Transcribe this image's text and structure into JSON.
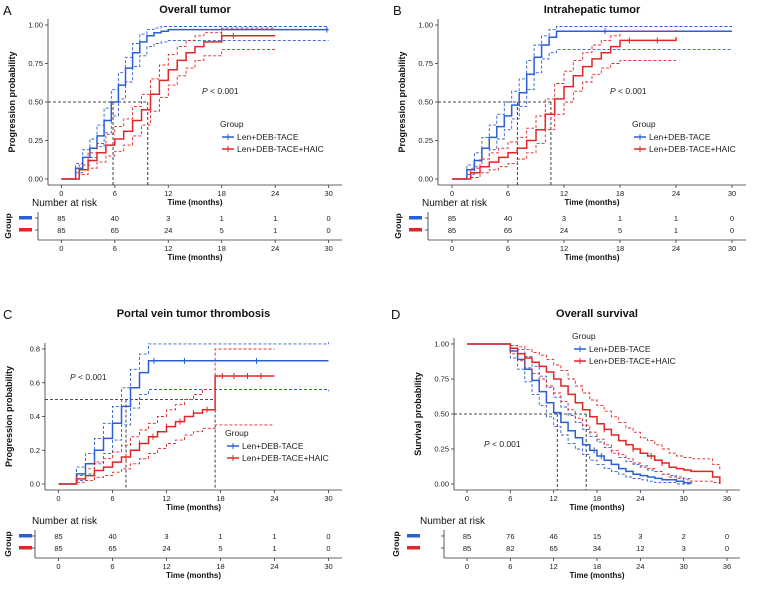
{
  "figure": {
    "colors": {
      "blue": "#2b5fd6",
      "red": "#e22626",
      "axis": "#333333"
    }
  },
  "chart_data": [
    {
      "panel_label": "A",
      "title": "Overall tumor",
      "type": "line",
      "subtype": "kaplan-meier",
      "xlabel": "Time (months)",
      "ylabel": "Progression probability",
      "xlim": [
        0,
        30
      ],
      "ylim": [
        0,
        1.0
      ],
      "xticks": [
        "0",
        "6",
        "12",
        "18",
        "24",
        "30"
      ],
      "yticks": [
        "0.00",
        "0.25",
        "0.50",
        "0.75",
        "1.00"
      ],
      "p_value_italic": "P",
      "p_value_text": " < 0.001",
      "p_position": "middle-right",
      "legend_title": "Group",
      "legend_position": "lower-right",
      "medians": [
        5.8,
        9.7
      ],
      "series": [
        {
          "name": "Len+DEB-TACE",
          "color": "blue",
          "x": [
            0,
            1.2,
            1.6,
            2.4,
            3.2,
            4,
            4.8,
            5.6,
            6.4,
            7.2,
            8,
            8.8,
            9.6,
            10.4,
            11.2,
            12,
            30
          ],
          "y": [
            0,
            0,
            0.07,
            0.14,
            0.2,
            0.28,
            0.38,
            0.5,
            0.61,
            0.72,
            0.82,
            0.89,
            0.93,
            0.95,
            0.96,
            0.97,
            0.97
          ],
          "upper": [
            0,
            0,
            0.1,
            0.19,
            0.26,
            0.35,
            0.46,
            0.58,
            0.69,
            0.79,
            0.88,
            0.94,
            0.97,
            0.98,
            0.99,
            0.99,
            0.99
          ],
          "lower": [
            0,
            0,
            0.04,
            0.09,
            0.14,
            0.21,
            0.3,
            0.41,
            0.52,
            0.63,
            0.73,
            0.8,
            0.86,
            0.88,
            0.89,
            0.9,
            0.9
          ],
          "censor_x": [
            29.8
          ]
        },
        {
          "name": "Len+DEB-TACE+HAIC",
          "color": "red",
          "x": [
            0,
            1.2,
            2,
            3,
            4,
            5,
            6,
            7,
            8,
            9,
            10,
            11,
            12,
            13,
            14,
            15,
            16,
            18,
            24
          ],
          "y": [
            0,
            0,
            0.06,
            0.12,
            0.17,
            0.22,
            0.26,
            0.31,
            0.38,
            0.45,
            0.55,
            0.64,
            0.71,
            0.77,
            0.82,
            0.86,
            0.89,
            0.93,
            0.93
          ],
          "upper": [
            0,
            0,
            0.09,
            0.17,
            0.23,
            0.29,
            0.34,
            0.39,
            0.47,
            0.55,
            0.65,
            0.74,
            0.81,
            0.86,
            0.9,
            0.93,
            0.95,
            0.98,
            0.98
          ],
          "lower": [
            0,
            0,
            0.03,
            0.07,
            0.11,
            0.15,
            0.18,
            0.22,
            0.28,
            0.35,
            0.44,
            0.53,
            0.61,
            0.67,
            0.72,
            0.77,
            0.8,
            0.84,
            0.84
          ],
          "censor_x": [
            18,
            19.3
          ]
        }
      ],
      "number_at_risk": {
        "header": "Number at risk",
        "group_label": "Group",
        "times": [
          "0",
          "6",
          "12",
          "18",
          "24",
          "30"
        ],
        "rows": [
          {
            "color": "blue",
            "counts": [
              "85",
              "40",
              "3",
              "1",
              "1",
              "0"
            ]
          },
          {
            "color": "red",
            "counts": [
              "85",
              "65",
              "24",
              "5",
              "1",
              "0"
            ]
          }
        ],
        "xlabel": "Time (months)"
      }
    },
    {
      "panel_label": "B",
      "title": "Intrahepatic tumor",
      "type": "line",
      "subtype": "kaplan-meier",
      "xlabel": "Time (months)",
      "ylabel": "Progression probability",
      "xlim": [
        0,
        30
      ],
      "ylim": [
        0,
        1.0
      ],
      "xticks": [
        "0",
        "6",
        "12",
        "18",
        "24",
        "30"
      ],
      "yticks": [
        "0.00",
        "0.25",
        "0.50",
        "0.75",
        "1.00"
      ],
      "p_value_italic": "P",
      "p_value_text": " < 0.001",
      "p_position": "middle-right",
      "legend_title": "Group",
      "legend_position": "lower-right",
      "medians": [
        7.0,
        10.6
      ],
      "series": [
        {
          "name": "Len+DEB-TACE",
          "color": "blue",
          "x": [
            0,
            1.2,
            1.6,
            2.4,
            3.2,
            4,
            4.8,
            5.6,
            6.4,
            7.2,
            8,
            8.8,
            9.6,
            10.4,
            11.2,
            30
          ],
          "y": [
            0,
            0,
            0.06,
            0.12,
            0.2,
            0.27,
            0.34,
            0.41,
            0.48,
            0.56,
            0.68,
            0.79,
            0.87,
            0.92,
            0.96,
            0.96
          ],
          "upper": [
            0,
            0,
            0.09,
            0.17,
            0.27,
            0.35,
            0.42,
            0.5,
            0.57,
            0.65,
            0.77,
            0.87,
            0.93,
            0.97,
            0.99,
            0.99
          ],
          "lower": [
            0,
            0,
            0.03,
            0.08,
            0.13,
            0.19,
            0.26,
            0.32,
            0.39,
            0.47,
            0.58,
            0.69,
            0.78,
            0.82,
            0.84,
            0.84
          ],
          "censor_x": [
            16.4
          ]
        },
        {
          "name": "Len+DEB-TACE+HAIC",
          "color": "red",
          "x": [
            0,
            1.2,
            2,
            3,
            4,
            5,
            6,
            7,
            8,
            9,
            10,
            11,
            12,
            13,
            14,
            15,
            16,
            17,
            18,
            24
          ],
          "y": [
            0,
            0,
            0.04,
            0.08,
            0.11,
            0.14,
            0.17,
            0.2,
            0.25,
            0.32,
            0.42,
            0.52,
            0.6,
            0.67,
            0.73,
            0.78,
            0.82,
            0.86,
            0.9,
            0.92
          ],
          "upper": [
            0,
            0,
            0.07,
            0.13,
            0.17,
            0.2,
            0.24,
            0.27,
            0.33,
            0.41,
            0.52,
            0.62,
            0.7,
            0.77,
            0.82,
            0.87,
            0.9,
            0.93,
            0.96,
            0.98
          ],
          "lower": [
            0,
            0,
            0.01,
            0.04,
            0.06,
            0.08,
            0.1,
            0.13,
            0.17,
            0.23,
            0.32,
            0.42,
            0.5,
            0.57,
            0.63,
            0.68,
            0.72,
            0.75,
            0.77,
            0.77
          ],
          "censor_x": [
            19,
            22
          ]
        }
      ],
      "number_at_risk": {
        "header": "Number at risk",
        "group_label": "Group",
        "times": [
          "0",
          "6",
          "12",
          "18",
          "24",
          "30"
        ],
        "rows": [
          {
            "color": "blue",
            "counts": [
              "85",
              "40",
              "3",
              "1",
              "1",
              "0"
            ]
          },
          {
            "color": "red",
            "counts": [
              "85",
              "65",
              "24",
              "5",
              "1",
              "0"
            ]
          }
        ],
        "xlabel": "Time (months)"
      }
    },
    {
      "panel_label": "C",
      "title": "Portal vein tumor thrombosis",
      "type": "line",
      "subtype": "kaplan-meier",
      "xlabel": "Time (months)",
      "ylabel": "Progression probability",
      "xlim": [
        0,
        30
      ],
      "ylim": [
        0,
        0.8
      ],
      "xticks": [
        "0",
        "6",
        "12",
        "18",
        "24",
        "30"
      ],
      "yticks": [
        "0.0",
        "0.2",
        "0.4",
        "0.6",
        "0.8"
      ],
      "p_value_italic": "P",
      "p_value_text": " < 0.001",
      "p_position": "top-left",
      "legend_title": "Group",
      "legend_position": "lower-right",
      "medians": [
        7.5,
        17.4
      ],
      "series": [
        {
          "name": "Len+DEB-TACE",
          "color": "blue",
          "x": [
            0,
            1.2,
            2,
            3,
            4,
            5,
            6,
            7,
            8,
            9,
            10,
            30
          ],
          "y": [
            0,
            0,
            0.06,
            0.12,
            0.2,
            0.27,
            0.36,
            0.46,
            0.57,
            0.66,
            0.73,
            0.73
          ],
          "upper": [
            0,
            0,
            0.1,
            0.18,
            0.27,
            0.36,
            0.46,
            0.57,
            0.68,
            0.77,
            0.83,
            0.84
          ],
          "lower": [
            0,
            0,
            0.02,
            0.06,
            0.12,
            0.18,
            0.26,
            0.35,
            0.45,
            0.53,
            0.56,
            0.55
          ],
          "censor_x": [
            10.6,
            14,
            22
          ]
        },
        {
          "name": "Len+DEB-TACE+HAIC",
          "color": "red",
          "x": [
            0,
            1.2,
            2,
            3,
            4,
            5,
            6,
            7,
            8,
            9,
            10,
            11,
            12,
            13,
            14,
            15,
            16,
            17.4,
            24
          ],
          "y": [
            0,
            0,
            0.03,
            0.05,
            0.08,
            0.1,
            0.13,
            0.16,
            0.2,
            0.24,
            0.28,
            0.31,
            0.34,
            0.37,
            0.4,
            0.42,
            0.44,
            0.64,
            0.64
          ],
          "upper": [
            0,
            0,
            0.05,
            0.09,
            0.13,
            0.15,
            0.19,
            0.23,
            0.28,
            0.32,
            0.36,
            0.4,
            0.44,
            0.47,
            0.5,
            0.53,
            0.56,
            0.8,
            0.8
          ],
          "lower": [
            0,
            0,
            0.01,
            0.02,
            0.04,
            0.05,
            0.07,
            0.09,
            0.12,
            0.15,
            0.18,
            0.21,
            0.24,
            0.26,
            0.29,
            0.31,
            0.33,
            0.35,
            0.35
          ],
          "censor_x": [
            7.5,
            9,
            10.5,
            12,
            13.5,
            15,
            16.5,
            18.2,
            19.5,
            21,
            22.5
          ]
        }
      ],
      "number_at_risk": {
        "header": "Number at risk",
        "group_label": "Group",
        "times": [
          "0",
          "6",
          "12",
          "18",
          "24",
          "30"
        ],
        "rows": [
          {
            "color": "blue",
            "counts": [
              "85",
              "40",
              "3",
              "1",
              "1",
              "0"
            ]
          },
          {
            "color": "red",
            "counts": [
              "85",
              "65",
              "24",
              "5",
              "1",
              "0"
            ]
          }
        ],
        "xlabel": "Time (months)"
      }
    },
    {
      "panel_label": "D",
      "title": "Overall survival",
      "type": "line",
      "subtype": "kaplan-meier",
      "xlabel": "Time (months)",
      "ylabel": "Survival probability",
      "xlim": [
        0,
        36
      ],
      "ylim": [
        0,
        1.0
      ],
      "xticks": [
        "0",
        "6",
        "12",
        "18",
        "24",
        "30",
        "36"
      ],
      "yticks": [
        "0.00",
        "0.25",
        "0.50",
        "0.75",
        "1.00"
      ],
      "p_value_italic": "P",
      "p_value_text": " < 0.001",
      "p_position": "lower-left",
      "legend_title": "Group",
      "legend_position": "top-right",
      "medians": [
        12.5,
        16.5
      ],
      "series": [
        {
          "name": "Len+DEB-TACE",
          "color": "blue",
          "x": [
            0,
            5,
            6,
            7,
            8,
            9,
            10,
            11,
            12,
            13,
            14,
            15,
            16,
            17,
            18,
            19,
            20,
            21,
            22,
            23,
            24,
            25,
            26,
            27,
            28,
            29,
            30,
            31
          ],
          "y": [
            1,
            1,
            0.95,
            0.89,
            0.82,
            0.74,
            0.66,
            0.58,
            0.51,
            0.44,
            0.38,
            0.33,
            0.28,
            0.24,
            0.2,
            0.17,
            0.14,
            0.11,
            0.09,
            0.07,
            0.06,
            0.05,
            0.04,
            0.03,
            0.03,
            0.02,
            0.01,
            0
          ],
          "upper": [
            1,
            1,
            0.99,
            0.96,
            0.91,
            0.84,
            0.77,
            0.69,
            0.62,
            0.55,
            0.49,
            0.44,
            0.39,
            0.34,
            0.3,
            0.26,
            0.22,
            0.19,
            0.16,
            0.14,
            0.12,
            0.1,
            0.09,
            0.07,
            0.06,
            0.05,
            0.04,
            0.03
          ],
          "lower": [
            1,
            1,
            0.9,
            0.82,
            0.73,
            0.64,
            0.56,
            0.48,
            0.41,
            0.35,
            0.29,
            0.25,
            0.21,
            0.17,
            0.14,
            0.11,
            0.09,
            0.07,
            0.05,
            0.04,
            0.03,
            0.02,
            0.01,
            0.01,
            0.01,
            0,
            0,
            0
          ],
          "censor_x": [
            17.6,
            18.6
          ]
        },
        {
          "name": "Len+DEB-TACE+HAIC",
          "color": "red",
          "x": [
            0,
            5,
            6,
            7,
            8,
            9,
            10,
            11,
            12,
            13,
            14,
            15,
            16,
            17,
            18,
            19,
            20,
            21,
            22,
            23,
            24,
            25,
            26,
            27,
            28,
            29,
            30,
            31,
            32,
            34,
            35
          ],
          "y": [
            1,
            1,
            0.97,
            0.93,
            0.9,
            0.87,
            0.84,
            0.8,
            0.75,
            0.7,
            0.64,
            0.58,
            0.53,
            0.48,
            0.43,
            0.39,
            0.35,
            0.31,
            0.28,
            0.25,
            0.22,
            0.2,
            0.17,
            0.15,
            0.12,
            0.11,
            0.1,
            0.09,
            0.09,
            0.05,
            0
          ],
          "upper": [
            1,
            1,
            0.99,
            0.98,
            0.96,
            0.94,
            0.92,
            0.89,
            0.85,
            0.81,
            0.75,
            0.7,
            0.65,
            0.6,
            0.56,
            0.52,
            0.48,
            0.44,
            0.4,
            0.37,
            0.33,
            0.31,
            0.28,
            0.25,
            0.22,
            0.2,
            0.19,
            0.18,
            0.18,
            0.14,
            0.1
          ],
          "lower": [
            1,
            1,
            0.93,
            0.88,
            0.83,
            0.79,
            0.75,
            0.7,
            0.65,
            0.59,
            0.53,
            0.47,
            0.42,
            0.37,
            0.32,
            0.28,
            0.24,
            0.21,
            0.18,
            0.15,
            0.13,
            0.11,
            0.09,
            0.07,
            0.05,
            0.04,
            0.03,
            0.02,
            0.02,
            0.01,
            0
          ],
          "censor_x": [
            19,
            23,
            25.5,
            27
          ]
        }
      ],
      "number_at_risk": {
        "header": "Number at risk",
        "group_label": "Group",
        "times": [
          "0",
          "6",
          "12",
          "18",
          "24",
          "30",
          "36"
        ],
        "rows": [
          {
            "color": "blue",
            "counts": [
              "85",
              "76",
              "46",
              "15",
              "3",
              "2",
              "0"
            ]
          },
          {
            "color": "red",
            "counts": [
              "85",
              "82",
              "65",
              "34",
              "12",
              "3",
              "0"
            ]
          }
        ],
        "xlabel": "Time (months)"
      }
    }
  ]
}
